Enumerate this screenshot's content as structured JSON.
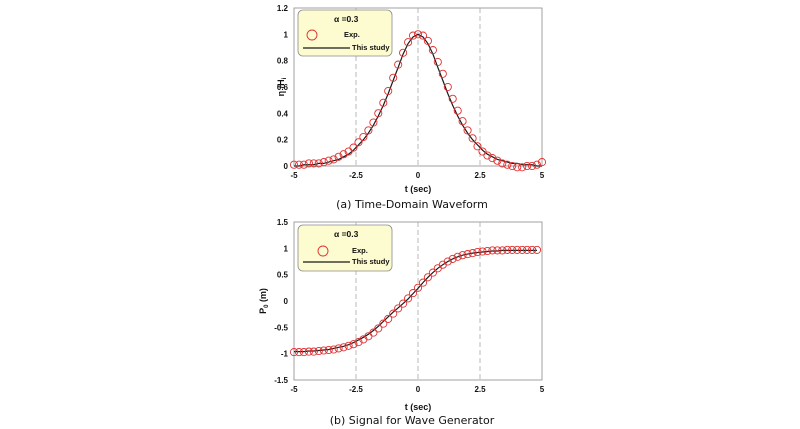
{
  "chart_data": [
    {
      "type": "scatter",
      "caption": "(a) Time-Domain Waveform",
      "xlabel": "t (sec)",
      "ylabel": "η /H",
      "ylabel_sub": "i",
      "xlim": [
        -5,
        5
      ],
      "ylim": [
        0,
        1.2
      ],
      "x_ticks": [
        "-5",
        "-2.5",
        "0",
        "2.5",
        "5"
      ],
      "x_tick_values": [
        -5,
        -2.5,
        0,
        2.5,
        5
      ],
      "y_ticks": [
        "0",
        "0.2",
        "0.4",
        "0.6",
        "0.8",
        "1",
        "1.2"
      ],
      "y_tick_values": [
        0,
        0.2,
        0.4,
        0.6,
        0.8,
        1.0,
        1.2
      ],
      "grid": "dashed vertical lines at x ticks",
      "legend_title": "α =0.3",
      "legend_position": "top-left",
      "series": [
        {
          "name": "Exp.",
          "marker": "circle",
          "color": "#e03030",
          "x": [
            -5.0,
            -4.8,
            -4.6,
            -4.4,
            -4.2,
            -4.0,
            -3.8,
            -3.6,
            -3.4,
            -3.2,
            -3.0,
            -2.8,
            -2.6,
            -2.4,
            -2.2,
            -2.0,
            -1.8,
            -1.6,
            -1.4,
            -1.2,
            -1.0,
            -0.8,
            -0.6,
            -0.4,
            -0.2,
            0.0,
            0.2,
            0.4,
            0.6,
            0.8,
            1.0,
            1.2,
            1.4,
            1.6,
            1.8,
            2.0,
            2.2,
            2.4,
            2.6,
            2.8,
            3.0,
            3.2,
            3.4,
            3.6,
            3.8,
            4.0,
            4.2,
            4.4,
            4.6,
            4.8,
            5.0
          ],
          "values": [
            0.01,
            0.01,
            0.01,
            0.02,
            0.02,
            0.02,
            0.03,
            0.04,
            0.05,
            0.07,
            0.09,
            0.11,
            0.14,
            0.18,
            0.22,
            0.27,
            0.33,
            0.4,
            0.48,
            0.57,
            0.67,
            0.77,
            0.86,
            0.94,
            0.99,
            1.0,
            0.99,
            0.95,
            0.88,
            0.79,
            0.7,
            0.6,
            0.51,
            0.42,
            0.34,
            0.27,
            0.21,
            0.15,
            0.11,
            0.08,
            0.06,
            0.04,
            0.02,
            0.01,
            0.0,
            -0.01,
            -0.01,
            0.0,
            0.0,
            0.01,
            0.03
          ]
        },
        {
          "name": "This study",
          "marker": "line",
          "color": "#1a1a1a",
          "x": [
            -5.0,
            -4.8,
            -4.6,
            -4.4,
            -4.2,
            -4.0,
            -3.8,
            -3.6,
            -3.4,
            -3.2,
            -3.0,
            -2.8,
            -2.6,
            -2.4,
            -2.2,
            -2.0,
            -1.8,
            -1.6,
            -1.4,
            -1.2,
            -1.0,
            -0.8,
            -0.6,
            -0.4,
            -0.2,
            0.0,
            0.2,
            0.4,
            0.6,
            0.8,
            1.0,
            1.2,
            1.4,
            1.6,
            1.8,
            2.0,
            2.2,
            2.4,
            2.6,
            2.8,
            3.0,
            3.2,
            3.4,
            3.6,
            3.8,
            4.0,
            4.2,
            4.4,
            4.6,
            4.8,
            5.0
          ],
          "values": [
            0.0,
            0.0,
            0.01,
            0.01,
            0.01,
            0.02,
            0.02,
            0.03,
            0.04,
            0.05,
            0.07,
            0.09,
            0.12,
            0.16,
            0.2,
            0.25,
            0.31,
            0.38,
            0.46,
            0.55,
            0.65,
            0.75,
            0.85,
            0.93,
            0.98,
            1.0,
            0.98,
            0.93,
            0.85,
            0.75,
            0.65,
            0.55,
            0.46,
            0.38,
            0.31,
            0.25,
            0.2,
            0.16,
            0.12,
            0.09,
            0.07,
            0.05,
            0.04,
            0.03,
            0.02,
            0.02,
            0.01,
            0.01,
            0.01,
            0.0,
            0.0
          ]
        }
      ]
    },
    {
      "type": "scatter",
      "caption": "(b) Signal for Wave Generator",
      "xlabel": "t (sec)",
      "ylabel": "P",
      "ylabel_sub": "0",
      "ylabel_unit": " (m)",
      "xlim": [
        -5,
        5
      ],
      "ylim": [
        -1.5,
        1.5
      ],
      "x_ticks": [
        "-5",
        "-2.5",
        "0",
        "2.5",
        "5"
      ],
      "x_tick_values": [
        -5,
        -2.5,
        0,
        2.5,
        5
      ],
      "y_ticks": [
        "-1.5",
        "-1",
        "-0.5",
        "0",
        "0.5",
        "1",
        "1.5"
      ],
      "y_tick_values": [
        -1.5,
        -1.0,
        -0.5,
        0,
        0.5,
        1.0,
        1.5
      ],
      "grid": "dashed vertical lines at x ticks",
      "legend_title": "α =0.3",
      "legend_position": "top-left",
      "series": [
        {
          "name": "Exp.",
          "marker": "circle",
          "color": "#e03030",
          "x": [
            -5.0,
            -4.8,
            -4.6,
            -4.4,
            -4.2,
            -4.0,
            -3.8,
            -3.6,
            -3.4,
            -3.2,
            -3.0,
            -2.8,
            -2.6,
            -2.4,
            -2.2,
            -2.0,
            -1.8,
            -1.6,
            -1.4,
            -1.2,
            -1.0,
            -0.8,
            -0.6,
            -0.4,
            -0.2,
            0.0,
            0.2,
            0.4,
            0.6,
            0.8,
            1.0,
            1.2,
            1.4,
            1.6,
            1.8,
            2.0,
            2.2,
            2.4,
            2.6,
            2.8,
            3.0,
            3.2,
            3.4,
            3.6,
            3.8,
            4.0,
            4.2,
            4.4,
            4.6,
            4.8
          ],
          "values": [
            -0.97,
            -0.97,
            -0.97,
            -0.96,
            -0.96,
            -0.95,
            -0.94,
            -0.93,
            -0.92,
            -0.9,
            -0.88,
            -0.85,
            -0.82,
            -0.78,
            -0.73,
            -0.67,
            -0.6,
            -0.52,
            -0.43,
            -0.34,
            -0.24,
            -0.14,
            -0.05,
            0.05,
            0.15,
            0.25,
            0.35,
            0.45,
            0.54,
            0.62,
            0.69,
            0.75,
            0.8,
            0.84,
            0.87,
            0.89,
            0.91,
            0.93,
            0.94,
            0.95,
            0.96,
            0.96,
            0.96,
            0.97,
            0.97,
            0.97,
            0.97,
            0.97,
            0.97,
            0.97
          ]
        },
        {
          "name": "This study",
          "marker": "line",
          "color": "#1a1a1a",
          "x": [
            -5.0,
            -4.8,
            -4.6,
            -4.4,
            -4.2,
            -4.0,
            -3.8,
            -3.6,
            -3.4,
            -3.2,
            -3.0,
            -2.8,
            -2.6,
            -2.4,
            -2.2,
            -2.0,
            -1.8,
            -1.6,
            -1.4,
            -1.2,
            -1.0,
            -0.8,
            -0.6,
            -0.4,
            -0.2,
            0.0,
            0.2,
            0.4,
            0.6,
            0.8,
            1.0,
            1.2,
            1.4,
            1.6,
            1.8,
            2.0,
            2.2,
            2.4,
            2.6,
            2.8,
            3.0,
            3.2,
            3.4,
            3.6,
            3.8,
            4.0,
            4.2,
            4.4,
            4.6,
            4.8
          ],
          "values": [
            -0.96,
            -0.96,
            -0.96,
            -0.95,
            -0.95,
            -0.94,
            -0.93,
            -0.92,
            -0.9,
            -0.88,
            -0.86,
            -0.83,
            -0.79,
            -0.74,
            -0.69,
            -0.63,
            -0.56,
            -0.48,
            -0.39,
            -0.3,
            -0.21,
            -0.13,
            -0.05,
            0.04,
            0.14,
            0.24,
            0.35,
            0.45,
            0.54,
            0.62,
            0.69,
            0.75,
            0.8,
            0.84,
            0.87,
            0.89,
            0.91,
            0.92,
            0.93,
            0.94,
            0.95,
            0.95,
            0.96,
            0.96,
            0.96,
            0.96,
            0.96,
            0.96,
            0.96,
            0.96
          ]
        }
      ]
    }
  ],
  "colors": {
    "legend_fill": "#fdfbd0",
    "marker": "#e03030",
    "line": "#1a1a1a",
    "grid": "#a8a8a8"
  }
}
